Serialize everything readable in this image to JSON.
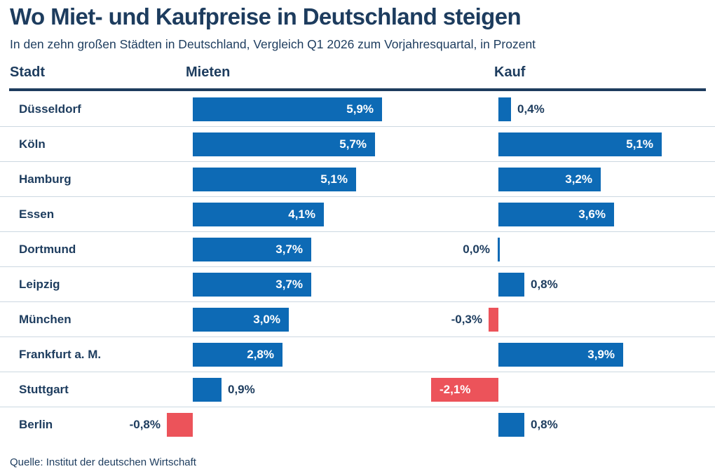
{
  "title": "Wo Miet- und Kaufpreise in Deutschland steigen",
  "subtitle": "In den zehn großen Städten in Deutschland, Vergleich Q1 2026 zum Vorjahresquartal, in Prozent",
  "source": "Quelle: Institut der deutschen Wirtschaft",
  "columns": {
    "city": "Stadt",
    "rent": "Mieten",
    "buy": "Kauf"
  },
  "colors": {
    "positive_bar": "#0d6ab5",
    "negative_bar": "#ec535a",
    "text": "#1d3c5e",
    "inside_label": "#ffffff",
    "divider": "#ccd8e1",
    "header_rule": "#1d3c5e"
  },
  "chart_data": {
    "type": "bar",
    "orientation": "horizontal",
    "unit": "Prozent",
    "categories": [
      "Düsseldorf",
      "Köln",
      "Hamburg",
      "Essen",
      "Dortmund",
      "Leipzig",
      "München",
      "Frankfurt a. M.",
      "Stuttgart",
      "Berlin"
    ],
    "series": [
      {
        "name": "Mieten",
        "values": [
          5.9,
          5.7,
          5.1,
          4.1,
          3.7,
          3.7,
          3.0,
          2.8,
          0.9,
          -0.8
        ],
        "labels": [
          "5,9%",
          "5,7%",
          "5,1%",
          "4,1%",
          "3,7%",
          "3,7%",
          "3,0%",
          "2,8%",
          "0,9%",
          "-0,8%"
        ]
      },
      {
        "name": "Kauf",
        "values": [
          0.4,
          5.1,
          3.2,
          3.6,
          0.0,
          0.8,
          -0.3,
          3.9,
          -2.1,
          0.8
        ],
        "labels": [
          "0,4%",
          "5,1%",
          "3,2%",
          "3,6%",
          "0,0%",
          "0,8%",
          "-0,3%",
          "3,9%",
          "-2,1%",
          "0,8%"
        ]
      }
    ],
    "value_range_hint": [
      -2.1,
      5.9
    ],
    "grid": "row-dividers-only",
    "legend": "column-headers"
  }
}
